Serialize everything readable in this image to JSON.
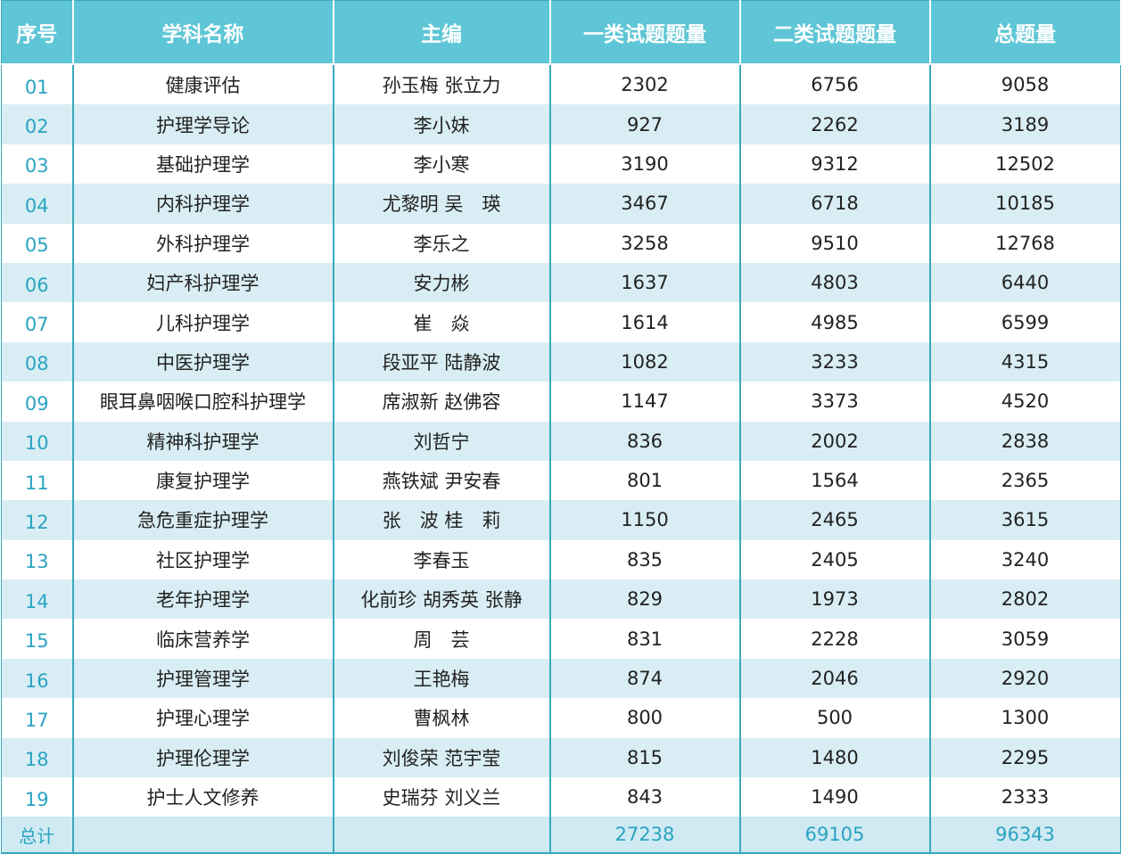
{
  "headers": [
    "序号",
    "学科名称",
    "主编",
    "一类试题题量",
    "二类试题题量",
    "总题量"
  ],
  "rows": [
    {
      "idx": "01",
      "subject": "健康评估",
      "editor": "孙玉梅 张立力",
      "c1": "2302",
      "c2": "6756",
      "total": "9058"
    },
    {
      "idx": "02",
      "subject": "护理学导论",
      "editor": "李小妹",
      "c1": "927",
      "c2": "2262",
      "total": "3189"
    },
    {
      "idx": "03",
      "subject": "基础护理学",
      "editor": "李小寒",
      "c1": "3190",
      "c2": "9312",
      "total": "12502"
    },
    {
      "idx": "04",
      "subject": "内科护理学",
      "editor": "尤黎明 吴　瑛",
      "c1": "3467",
      "c2": "6718",
      "total": "10185"
    },
    {
      "idx": "05",
      "subject": "外科护理学",
      "editor": "李乐之",
      "c1": "3258",
      "c2": "9510",
      "total": "12768"
    },
    {
      "idx": "06",
      "subject": "妇产科护理学",
      "editor": "安力彬",
      "c1": "1637",
      "c2": "4803",
      "total": "6440"
    },
    {
      "idx": "07",
      "subject": "儿科护理学",
      "editor": "崔　焱",
      "c1": "1614",
      "c2": "4985",
      "total": "6599"
    },
    {
      "idx": "08",
      "subject": "中医护理学",
      "editor": "段亚平 陆静波",
      "c1": "1082",
      "c2": "3233",
      "total": "4315"
    },
    {
      "idx": "09",
      "subject": "眼耳鼻咽喉口腔科护理学",
      "editor": "席淑新 赵佛容",
      "c1": "1147",
      "c2": "3373",
      "total": "4520"
    },
    {
      "idx": "10",
      "subject": "精神科护理学",
      "editor": "刘哲宁",
      "c1": "836",
      "c2": "2002",
      "total": "2838"
    },
    {
      "idx": "11",
      "subject": "康复护理学",
      "editor": "燕铁斌 尹安春",
      "c1": "801",
      "c2": "1564",
      "total": "2365"
    },
    {
      "idx": "12",
      "subject": "急危重症护理学",
      "editor": "张　波 桂　莉",
      "c1": "1150",
      "c2": "2465",
      "total": "3615"
    },
    {
      "idx": "13",
      "subject": "社区护理学",
      "editor": "李春玉",
      "c1": "835",
      "c2": "2405",
      "total": "3240"
    },
    {
      "idx": "14",
      "subject": "老年护理学",
      "editor": "化前珍 胡秀英 张静",
      "c1": "829",
      "c2": "1973",
      "total": "2802"
    },
    {
      "idx": "15",
      "subject": "临床营养学",
      "editor": "周　芸",
      "c1": "831",
      "c2": "2228",
      "total": "3059"
    },
    {
      "idx": "16",
      "subject": "护理管理学",
      "editor": "王艳梅",
      "c1": "874",
      "c2": "2046",
      "total": "2920"
    },
    {
      "idx": "17",
      "subject": "护理心理学",
      "editor": "曹枫林",
      "c1": "800",
      "c2": "500",
      "total": "1300"
    },
    {
      "idx": "18",
      "subject": "护理伦理学",
      "editor": "刘俊荣 范宇莹",
      "c1": "815",
      "c2": "1480",
      "total": "2295"
    },
    {
      "idx": "19",
      "subject": "护士人文修养",
      "editor": "史瑞芬 刘义兰",
      "c1": "843",
      "c2": "1490",
      "total": "2333"
    }
  ],
  "footer": {
    "label": "总计",
    "subject": "",
    "editor": "",
    "c1": "27238",
    "c2": "69105",
    "total": "96343"
  },
  "colors": {
    "header_bg": "#5ec6d6",
    "stripe": "#d9eef4",
    "border": "#3aa9bd",
    "index_text": "#2aa3c2"
  }
}
